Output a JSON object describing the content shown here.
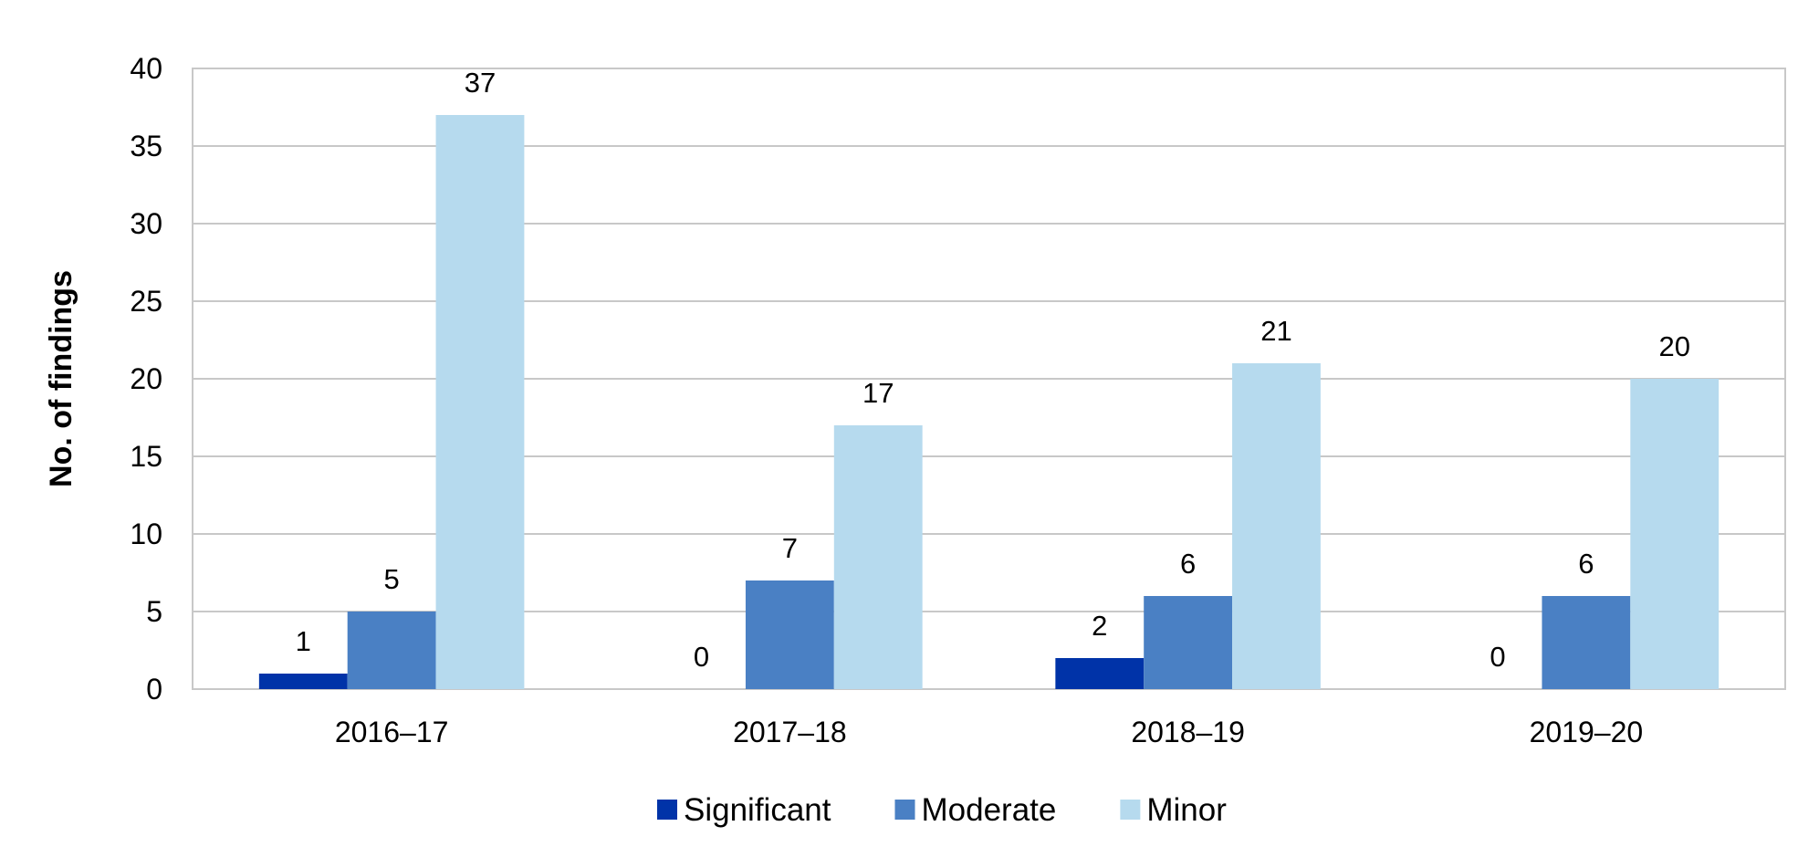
{
  "chart_data": {
    "type": "bar",
    "title": "",
    "xlabel": "",
    "ylabel": "No. of findings",
    "categories": [
      "2016–17",
      "2017–18",
      "2018–19",
      "2019–20"
    ],
    "series": [
      {
        "name": "Significant",
        "color": "#0033a8",
        "values": [
          1,
          0,
          2,
          0
        ]
      },
      {
        "name": "Moderate",
        "color": "#4a80c4",
        "values": [
          5,
          7,
          6,
          6
        ]
      },
      {
        "name": "Minor",
        "color": "#b6daee",
        "values": [
          37,
          17,
          21,
          20
        ]
      }
    ],
    "ylim": [
      0,
      40
    ],
    "yticks": [
      0,
      5,
      10,
      15,
      20,
      25,
      30,
      35,
      40
    ],
    "grid": true,
    "legend_position": "bottom",
    "data_labels": true
  }
}
